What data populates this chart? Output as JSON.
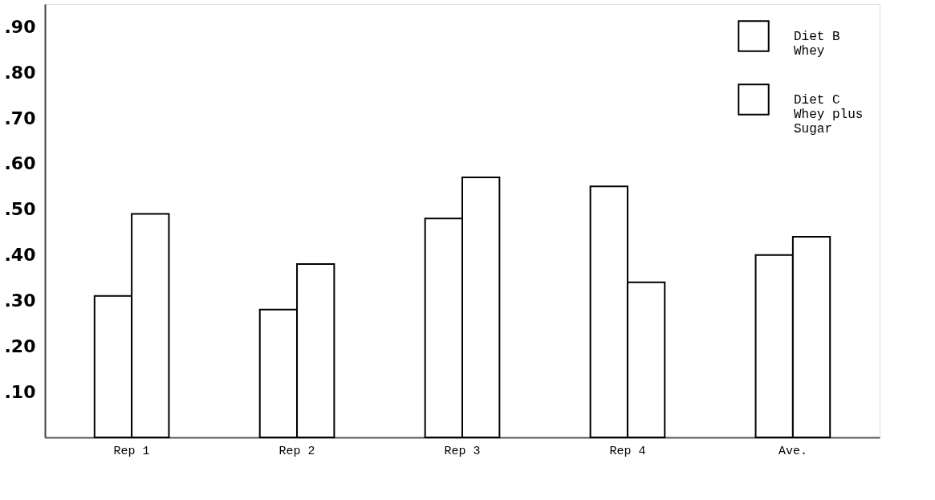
{
  "chart_data": {
    "type": "bar",
    "categories": [
      "Rep 1",
      "Rep 2",
      "Rep 3",
      "Rep 4",
      "Ave."
    ],
    "series": [
      {
        "name": "Diet B\nWhey",
        "color": "#ffffff",
        "values": [
          0.31,
          0.28,
          0.48,
          0.55,
          0.4
        ]
      },
      {
        "name": "Diet C\nWhey plus\nSugar",
        "color": "#ffffff",
        "values": [
          0.49,
          0.38,
          0.57,
          0.34,
          0.44
        ]
      }
    ],
    "ylim": [
      0,
      0.95
    ],
    "yticks": [
      {
        "value": 0.1,
        "label": ".10"
      },
      {
        "value": 0.2,
        "label": ".20"
      },
      {
        "value": 0.3,
        "label": ".30"
      },
      {
        "value": 0.4,
        "label": ".40"
      },
      {
        "value": 0.5,
        "label": ".50"
      },
      {
        "value": 0.6,
        "label": ".60"
      },
      {
        "value": 0.7,
        "label": ".70"
      },
      {
        "value": 0.8,
        "label": ".80"
      },
      {
        "value": 0.9,
        "label": ".90"
      }
    ],
    "grid": false,
    "legend": "top right"
  }
}
